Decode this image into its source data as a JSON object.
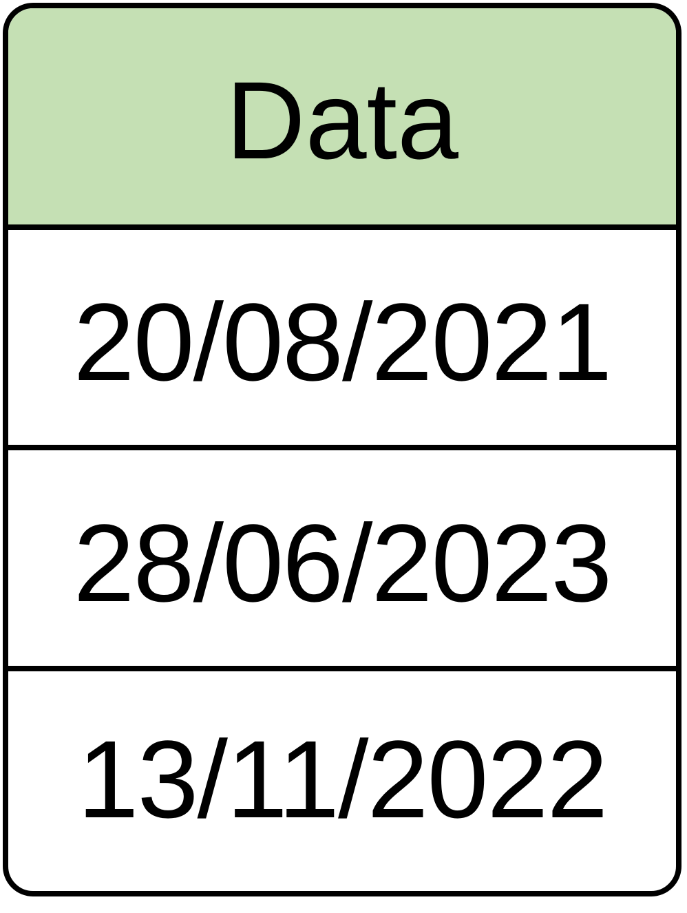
{
  "table": {
    "header": "Data",
    "header_color": "#c5e0b4",
    "border_color": "#000000",
    "rows": [
      {
        "value": "20/08/2021"
      },
      {
        "value": "28/06/2023"
      },
      {
        "value": "13/11/2022"
      }
    ]
  }
}
